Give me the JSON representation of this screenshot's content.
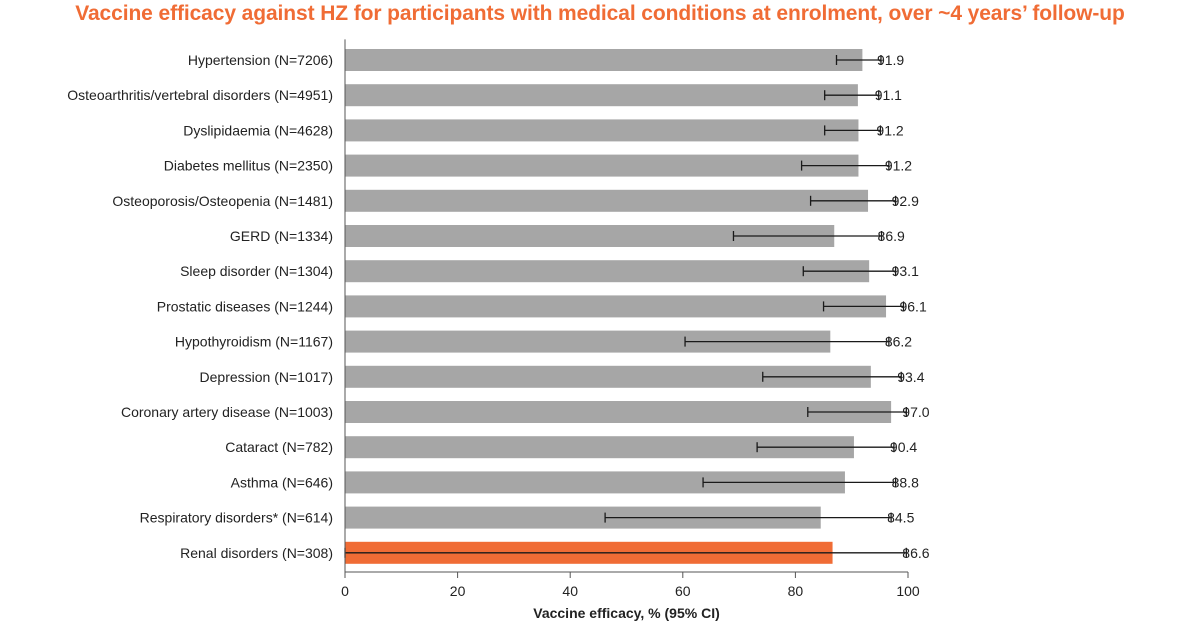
{
  "chart_data": {
    "type": "bar",
    "orientation": "horizontal",
    "title": "Vaccine efficacy against HZ for participants with medical conditions at enrolment, over ~4 years’ follow-up",
    "xlabel": "Vaccine efficacy, % (95% CI)",
    "ylabel": "",
    "xlim": [
      0,
      100
    ],
    "xticks": [
      0,
      20,
      40,
      60,
      80,
      100
    ],
    "grid": false,
    "categories": [
      "Hypertension (N=7206)",
      "Osteoarthritis/vertebral disorders (N=4951)",
      "Dyslipidaemia (N=4628)",
      "Diabetes mellitus (N=2350)",
      "Osteoporosis/Osteopenia (N=1481)",
      "GERD (N=1334)",
      "Sleep disorder (N=1304)",
      "Prostatic diseases (N=1244)",
      "Hypothyroidism (N=1167)",
      "Depression (N=1017)",
      "Coronary artery disease (N=1003)",
      "Cataract (N=782)",
      "Asthma (N=646)",
      "Respiratory disorders* (N=614)",
      "Renal disorders (N=308)"
    ],
    "values": [
      91.9,
      91.1,
      91.2,
      91.2,
      92.9,
      86.9,
      93.1,
      96.1,
      86.2,
      93.4,
      97.0,
      90.4,
      88.8,
      84.5,
      86.6
    ],
    "value_labels": [
      "91.9",
      "91.1",
      "91.2",
      "91.2",
      "92.9",
      "86.9",
      "93.1",
      "96.1",
      "86.2",
      "93.4",
      "97.0",
      "90.4",
      "88.8",
      "84.5",
      "86.6"
    ],
    "ci_lower": [
      87.3,
      85.2,
      85.2,
      81.1,
      82.7,
      69.0,
      81.4,
      85.0,
      60.4,
      74.2,
      82.2,
      73.2,
      63.6,
      46.2,
      0
    ],
    "ci_upper": [
      95.2,
      94.8,
      95.1,
      96.6,
      97.8,
      95.3,
      97.8,
      99.2,
      96.6,
      98.8,
      99.7,
      97.5,
      97.8,
      97.0,
      99.7
    ],
    "highlight_index": 14,
    "colors": {
      "bar": "#a6a6a6",
      "highlight": "#f06c35",
      "error_bar": "#1a1a1a",
      "axis": "#555555",
      "title": "#f06c35",
      "text": "#222222"
    }
  }
}
